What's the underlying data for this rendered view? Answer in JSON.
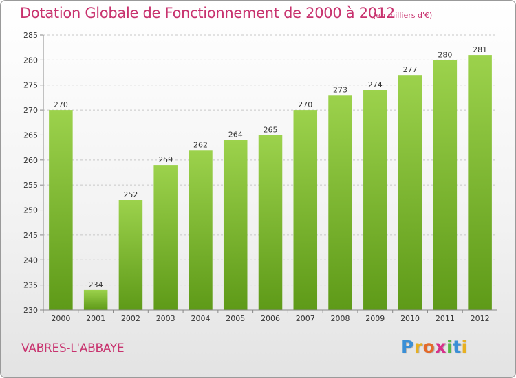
{
  "header": {
    "title": "Dotation Globale de Fonctionnement de 2000 à 2012",
    "subtitle": "(en milliers d'€)"
  },
  "footer": {
    "commune": "VABRES-L'ABBAYE",
    "logo_letters": [
      "P",
      "r",
      "o",
      "x",
      "i",
      "t",
      "i"
    ],
    "logo_colors": [
      "#3a8fd6",
      "#e8b020",
      "#e46a2a",
      "#d8308a",
      "#56b848",
      "#3a8fd6",
      "#e8b020"
    ]
  },
  "chart_data": {
    "type": "bar",
    "categories": [
      "2000",
      "2001",
      "2002",
      "2003",
      "2004",
      "2005",
      "2006",
      "2007",
      "2008",
      "2009",
      "2010",
      "2011",
      "2012"
    ],
    "values": [
      270,
      234,
      252,
      259,
      262,
      264,
      265,
      270,
      273,
      274,
      277,
      280,
      281
    ],
    "yticks": [
      230,
      235,
      240,
      245,
      250,
      255,
      260,
      265,
      270,
      275,
      280,
      285
    ],
    "ylim": [
      230,
      285
    ],
    "grid": true,
    "bar_color_top": "#9cd24c",
    "bar_color_bottom": "#5e9a18"
  }
}
